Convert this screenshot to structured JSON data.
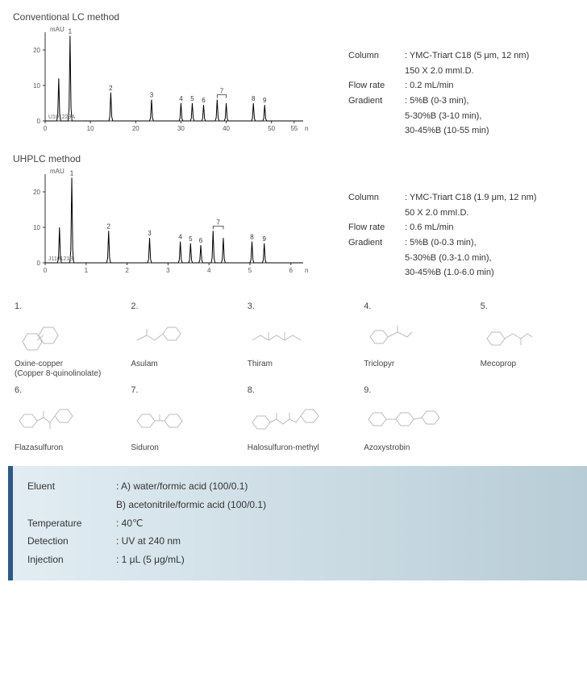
{
  "chromatograms": [
    {
      "title": "Conventional LC method",
      "y_label": "mAU",
      "y_ticks": [
        0,
        10,
        20
      ],
      "x_ticks": [
        0,
        10,
        20,
        30,
        40,
        50,
        55
      ],
      "x_unit": "min",
      "x_max": 57,
      "y_max": 25,
      "code": "U101229A",
      "peaks": [
        {
          "x": 3.0,
          "h": 12,
          "label": ""
        },
        {
          "x": 5.5,
          "h": 24,
          "label": "1"
        },
        {
          "x": 14.5,
          "h": 8,
          "label": "2"
        },
        {
          "x": 23.5,
          "h": 6,
          "label": "3"
        },
        {
          "x": 30.0,
          "h": 5,
          "label": "4"
        },
        {
          "x": 32.5,
          "h": 5,
          "label": "5"
        },
        {
          "x": 35.0,
          "h": 4.5,
          "label": "6"
        },
        {
          "x": 38.0,
          "h": 6,
          "label": "7",
          "bracket": true,
          "bracket_to": 40.0
        },
        {
          "x": 40.0,
          "h": 5,
          "label": ""
        },
        {
          "x": 46.0,
          "h": 5,
          "label": "8"
        },
        {
          "x": 48.5,
          "h": 4.5,
          "label": "9"
        }
      ],
      "params": {
        "Column": [
          "YMC-Triart C18 (5 μm, 12 nm)",
          "150 X 2.0 mmI.D."
        ],
        "Flow rate": [
          "0.2 mL/min"
        ],
        "Gradient": [
          "5%B (0-3 min),",
          "5-30%B (3-10 min),",
          "30-45%B (10-55 min)"
        ]
      }
    },
    {
      "title": "UHPLC method",
      "y_label": "mAU",
      "y_ticks": [
        0,
        10,
        20
      ],
      "x_ticks": [
        0,
        1,
        2,
        3,
        4,
        5,
        6
      ],
      "x_unit": "min",
      "x_max": 6.3,
      "y_max": 25,
      "code": "J110121B",
      "peaks": [
        {
          "x": 0.35,
          "h": 10,
          "label": ""
        },
        {
          "x": 0.65,
          "h": 24,
          "label": "1"
        },
        {
          "x": 1.55,
          "h": 9,
          "label": "2"
        },
        {
          "x": 2.55,
          "h": 7,
          "label": "3"
        },
        {
          "x": 3.3,
          "h": 6,
          "label": "4"
        },
        {
          "x": 3.55,
          "h": 5.5,
          "label": "5"
        },
        {
          "x": 3.8,
          "h": 5,
          "label": "6"
        },
        {
          "x": 4.1,
          "h": 9,
          "label": "7",
          "bracket": true,
          "bracket_to": 4.35
        },
        {
          "x": 4.35,
          "h": 7,
          "label": ""
        },
        {
          "x": 5.05,
          "h": 6,
          "label": "8"
        },
        {
          "x": 5.35,
          "h": 5.5,
          "label": "9"
        }
      ],
      "params": {
        "Column": [
          "YMC-Triart C18 (1.9 μm, 12 nm)",
          "50 X 2.0 mmI.D."
        ],
        "Flow rate": [
          "0.6 mL/min"
        ],
        "Gradient": [
          "5%B (0-0.3 min),",
          "5-30%B (0.3-1.0 min),",
          "30-45%B (1.0-6.0 min)"
        ]
      }
    }
  ],
  "compounds": [
    {
      "num": "1.",
      "name": "Oxine-copper",
      "name2": "(Copper 8-quinolinolate)"
    },
    {
      "num": "2.",
      "name": "Asulam"
    },
    {
      "num": "3.",
      "name": "Thiram"
    },
    {
      "num": "4.",
      "name": "Triclopyr"
    },
    {
      "num": "5.",
      "name": "Mecoprop"
    },
    {
      "num": "6.",
      "name": "Flazasulfuron"
    },
    {
      "num": "7.",
      "name": "Siduron"
    },
    {
      "num": "8.",
      "name": "Halosulfuron-methyl"
    },
    {
      "num": "9.",
      "name": "Azoxystrobin"
    }
  ],
  "conditions": [
    {
      "label": "Eluent",
      "values": [
        ": A) water/formic acid (100/0.1)",
        "  B) acetonitrile/formic acid (100/0.1)"
      ]
    },
    {
      "label": "Temperature",
      "values": [
        ": 40℃"
      ]
    },
    {
      "label": "Detection",
      "values": [
        ": UV at 240 nm"
      ]
    },
    {
      "label": "Injection",
      "values": [
        ": 1 μL (5 μg/mL)"
      ]
    }
  ],
  "colors": {
    "axis": "#333333",
    "text": "#444444",
    "box_border": "#2a5a8a",
    "box_bg_from": "#e2edf3",
    "box_bg_to": "#b7ccd6",
    "struct": "#bbbbbb"
  }
}
